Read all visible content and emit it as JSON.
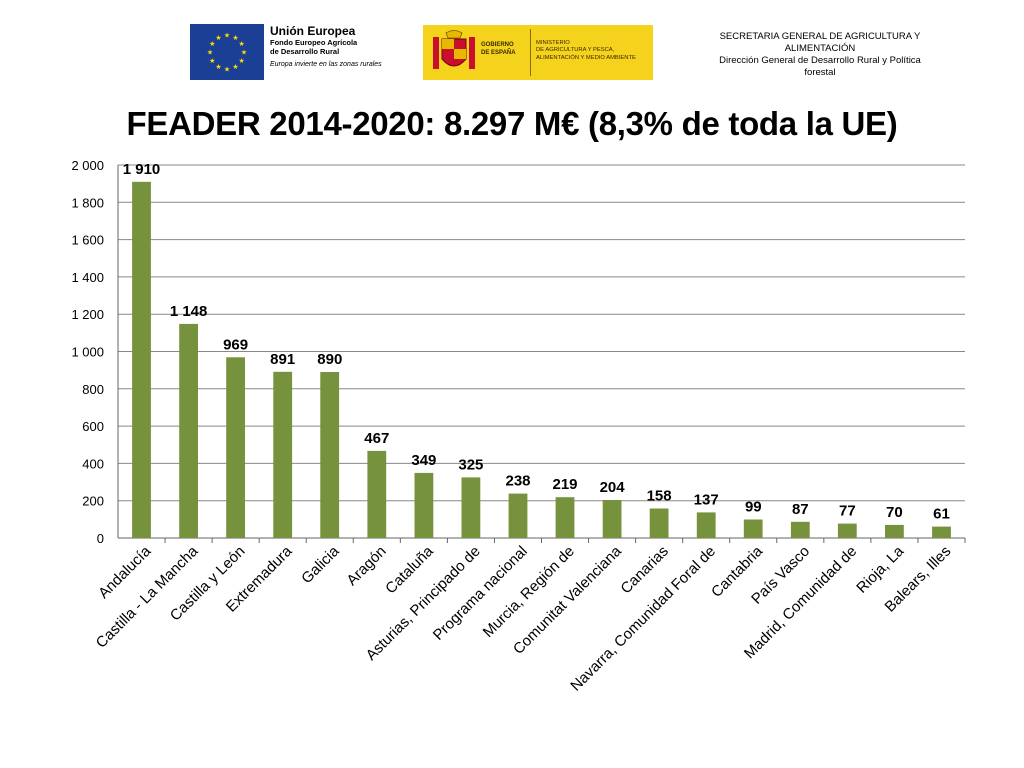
{
  "header": {
    "eu": {
      "title": "Unión Europea",
      "fund_line1": "Fondo Europeo Agrícola",
      "fund_line2": "de Desarrollo Rural",
      "slogan": "Europa invierte en las zonas rurales"
    },
    "spain": {
      "gobierno_line1": "GOBIERNO",
      "gobierno_line2": "DE ESPAÑA",
      "ministerio_line1": "MINISTERIO",
      "ministerio_line2": "DE AGRICULTURA Y PESCA,",
      "ministerio_line3": "ALIMENTACIÓN Y MEDIO AMBIENTE"
    },
    "secretaria_line1": "SECRETARIA GENERAL DE AGRICULTURA Y",
    "secretaria_line2": "ALIMENTACIÓN",
    "direccion_line1": "Dirección General de Desarrollo Rural y  Política",
    "direccion_line2": "forestal"
  },
  "colors": {
    "bar": "#76923c",
    "gridline": "#888888",
    "eu_blue": "#1b3f95",
    "eu_star": "#ffdd00",
    "spain_yellow": "#f5d21c"
  },
  "chart_data": {
    "type": "bar",
    "title": "FEADER 2014-2020: 8.297 M€ (8,3% de toda la UE)",
    "xlabel": "",
    "ylabel": "",
    "ylim": [
      0,
      2000
    ],
    "yticks": [
      0,
      200,
      400,
      600,
      800,
      1000,
      1200,
      1400,
      1600,
      1800,
      2000
    ],
    "ytick_labels": [
      "0",
      "200",
      "400",
      "600",
      "800",
      "1 000",
      "1 200",
      "1 400",
      "1 600",
      "1 800",
      "2 000"
    ],
    "grid": true,
    "legend": "none",
    "categories": [
      "Andalucía",
      "Castilla - La Mancha",
      "Castilla y León",
      "Extremadura",
      "Galicia",
      "Aragón",
      "Cataluña",
      "Asturias, Principado de",
      "Programa nacional",
      "Murcia, Región de",
      "Comunitat Valenciana",
      "Canarias",
      "Navarra, Comunidad Foral de",
      "Cantabria",
      "País Vasco",
      "Madrid, Comunidad de",
      "Rioja, La",
      "Balears, Illes"
    ],
    "values": [
      1910,
      1148,
      969,
      891,
      890,
      467,
      349,
      325,
      238,
      219,
      204,
      158,
      137,
      99,
      87,
      77,
      70,
      61
    ],
    "value_labels": [
      "1 910",
      "1 148",
      "969",
      "891",
      "890",
      "467",
      "349",
      "325",
      "238",
      "219",
      "204",
      "158",
      "137",
      "99",
      "87",
      "77",
      "70",
      "61"
    ]
  }
}
